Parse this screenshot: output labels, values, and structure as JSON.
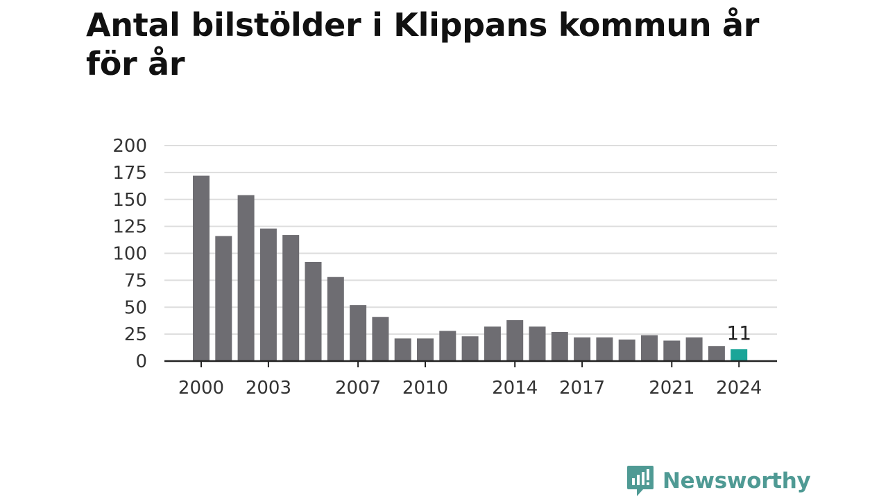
{
  "chart_data": {
    "type": "bar",
    "title": "Antal bilstölder i Klippans kommun år för år",
    "xlabel": "",
    "ylabel": "",
    "ylim": [
      0,
      200
    ],
    "yticks": [
      0,
      25,
      50,
      75,
      100,
      125,
      150,
      175,
      200
    ],
    "xtick_labels": [
      "2000",
      "2003",
      "2007",
      "2010",
      "2014",
      "2017",
      "2021",
      "2024"
    ],
    "categories": [
      "2000",
      "2001",
      "2002",
      "2003",
      "2004",
      "2005",
      "2006",
      "2007",
      "2008",
      "2009",
      "2010",
      "2011",
      "2012",
      "2013",
      "2014",
      "2015",
      "2016",
      "2017",
      "2018",
      "2019",
      "2020",
      "2021",
      "2022",
      "2023",
      "2024"
    ],
    "values": [
      172,
      116,
      154,
      123,
      117,
      92,
      78,
      52,
      41,
      21,
      21,
      28,
      23,
      32,
      38,
      32,
      27,
      22,
      22,
      20,
      24,
      19,
      22,
      14,
      11
    ],
    "highlight": {
      "category": "2024",
      "label": "11"
    },
    "grid": true,
    "colors": {
      "bar": "#6e6d72",
      "highlight": "#1aa598",
      "grid": "#dddddd",
      "axis": "#222222"
    }
  },
  "brand": {
    "name": "Newsworthy",
    "icon": "newsworthy-logo-icon",
    "color": "#4f9a94"
  }
}
